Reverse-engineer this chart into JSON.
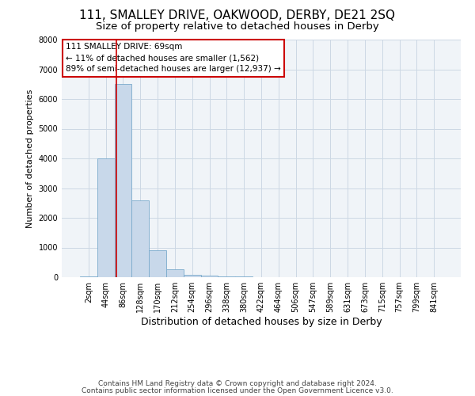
{
  "title1": "111, SMALLEY DRIVE, OAKWOOD, DERBY, DE21 2SQ",
  "title2": "Size of property relative to detached houses in Derby",
  "xlabel": "Distribution of detached houses by size in Derby",
  "ylabel": "Number of detached properties",
  "footnote1": "Contains HM Land Registry data © Crown copyright and database right 2024.",
  "footnote2": "Contains public sector information licensed under the Open Government Licence v3.0.",
  "annotation_line1": "111 SMALLEY DRIVE: 69sqm",
  "annotation_line2": "← 11% of detached houses are smaller (1,562)",
  "annotation_line3": "89% of semi-detached houses are larger (12,937) →",
  "bar_labels": [
    "2sqm",
    "44sqm",
    "86sqm",
    "128sqm",
    "170sqm",
    "212sqm",
    "254sqm",
    "296sqm",
    "338sqm",
    "380sqm",
    "422sqm",
    "464sqm",
    "506sqm",
    "547sqm",
    "589sqm",
    "631sqm",
    "673sqm",
    "715sqm",
    "757sqm",
    "799sqm",
    "841sqm"
  ],
  "bar_values": [
    20,
    4000,
    6500,
    2600,
    900,
    270,
    90,
    60,
    20,
    20,
    0,
    0,
    0,
    0,
    0,
    0,
    0,
    0,
    0,
    0,
    0
  ],
  "bar_color": "#c8d8ea",
  "bar_edge_color": "#7aaacc",
  "red_line_x": 1.62,
  "ylim": [
    0,
    8000
  ],
  "yticks": [
    0,
    1000,
    2000,
    3000,
    4000,
    5000,
    6000,
    7000,
    8000
  ],
  "grid_color": "#ccd8e4",
  "title1_fontsize": 11,
  "title2_fontsize": 9.5,
  "annotation_box_color": "#ffffff",
  "annotation_box_edgecolor": "#cc0000",
  "red_line_color": "#cc0000",
  "footnote_fontsize": 6.5,
  "xlabel_fontsize": 9,
  "ylabel_fontsize": 8,
  "tick_fontsize": 7
}
